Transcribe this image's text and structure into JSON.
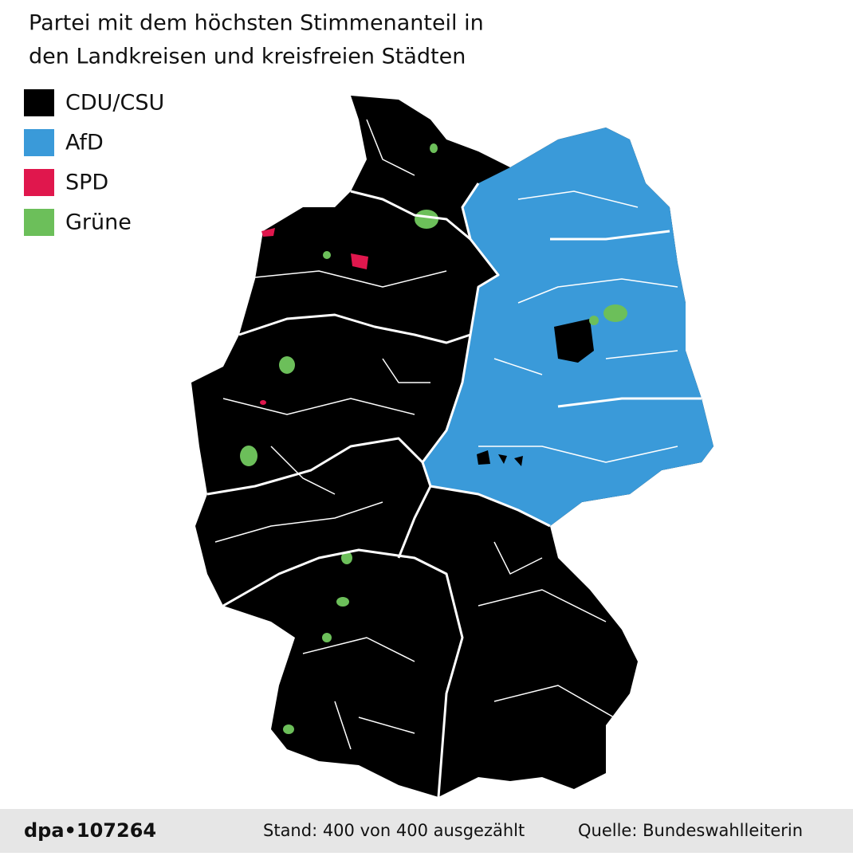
{
  "title": [
    "Partei mit dem höchsten Stimmenanteil in",
    "den Landkreisen und kreisfreien Städten"
  ],
  "legend": [
    {
      "name": "CDU/CSU",
      "color": "#000000"
    },
    {
      "name": "AfD",
      "color": "#3a9ad9"
    },
    {
      "name": "SPD",
      "color": "#e0174d"
    },
    {
      "name": "Grüne",
      "color": "#6cbf5a"
    }
  ],
  "footer": {
    "source_id": "dpa•107264",
    "status": "Stand: 400 von 400 ausgezählt",
    "source": "Quelle: Bundeswahlleiterin"
  }
}
